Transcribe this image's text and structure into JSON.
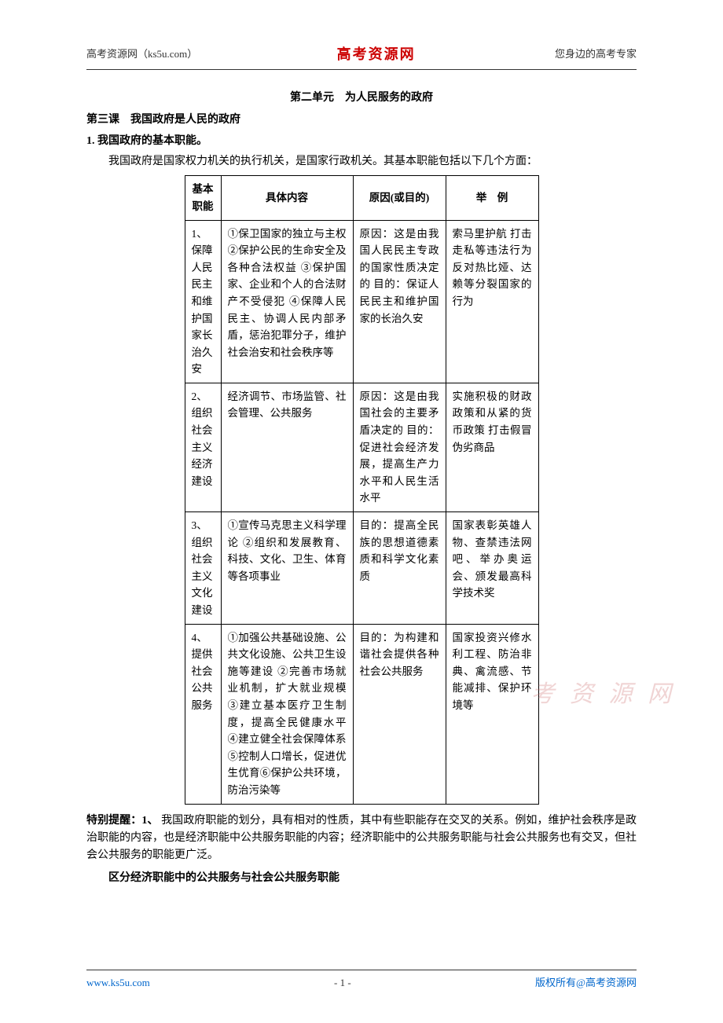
{
  "header": {
    "left": "高考资源网（ks5u.com）",
    "center": "高考资源网",
    "right": "您身边的高考专家"
  },
  "unit_title": "第二单元　为人民服务的政府",
  "lesson_title": "第三课　我国政府是人民的政府",
  "section_number": "1. 我国政府的基本职能。",
  "intro": "我国政府是国家权力机关的执行机关，是国家行政机关。其基本职能包括以下几个方面：",
  "table": {
    "headers": {
      "func": "基本职能",
      "content": "具体内容",
      "reason": "原因(或目的)",
      "example": "举　例"
    },
    "rows": [
      {
        "func": "1、保障人民民主和维护国家长治久安",
        "content": "①保卫国家的独立与主权 ②保护公民的生命安全及各种合法权益 ③保护国家、企业和个人的合法财产不受侵犯 ④保障人民民主、协调人民内部矛盾，惩治犯罪分子，维护社会治安和社会秩序等",
        "reason": "原因：这是由我国人民民主专政的国家性质决定的\n目的：保证人民民主和维护国家的长治久安",
        "example": "索马里护航\n打击走私等违法行为\n反对热比娅、达赖等分裂国家的行为"
      },
      {
        "func": "2、组织社会主义经济建设",
        "content": "经济调节、市场监管、社会管理、公共服务",
        "reason": "原因：这是由我国社会的主要矛盾决定的\n目的：促进社会经济发展，提高生产力水平和人民生活水平",
        "example": "实施积极的财政政策和从紧的货币政策\n打击假冒伪劣商品"
      },
      {
        "func": "3、组织社会主义文化建设",
        "content": "①宣传马克思主义科学理论 ②组织和发展教育、科技、文化、卫生、体育等各项事业",
        "reason": "目的：提高全民族的思想道德素质和科学文化素质",
        "example": "国家表彰英雄人物、查禁违法网吧、举办奥运会、颁发最高科学技术奖"
      },
      {
        "func": "4、提供社会公共服务",
        "content": "①加强公共基础设施、公共文化设施、公共卫生设施等建设 ②完善市场就业机制，扩大就业规模 ③建立基本医疗卫生制度，提高全民健康水平 ④建立健全社会保障体系 ⑤控制人口增长，促进优生优育⑥保护公共环境，防治污染等",
        "reason": "目的：为构建和谐社会提供各种社会公共服务",
        "example": "国家投资兴修水利工程、防治非典、禽流感、节能减排、保护环境等"
      }
    ]
  },
  "tip": {
    "label": "特别提醒：1、",
    "body": "我国政府职能的划分，具有相对的性质，其中有些职能存在交叉的关系。例如，维护社会秩序是政治职能的内容，也是经济职能中公共服务职能的内容；经济职能中的公共服务职能与社会公共服务也有交叉，但社会公共服务的职能更广泛。",
    "sub": "区分经济职能中的公共服务与社会公共服务职能"
  },
  "footer": {
    "url": "www.ks5u.com",
    "page": "- 1 -",
    "copyright": "版权所有@高考资源网"
  },
  "watermark": "考 资 源 网"
}
